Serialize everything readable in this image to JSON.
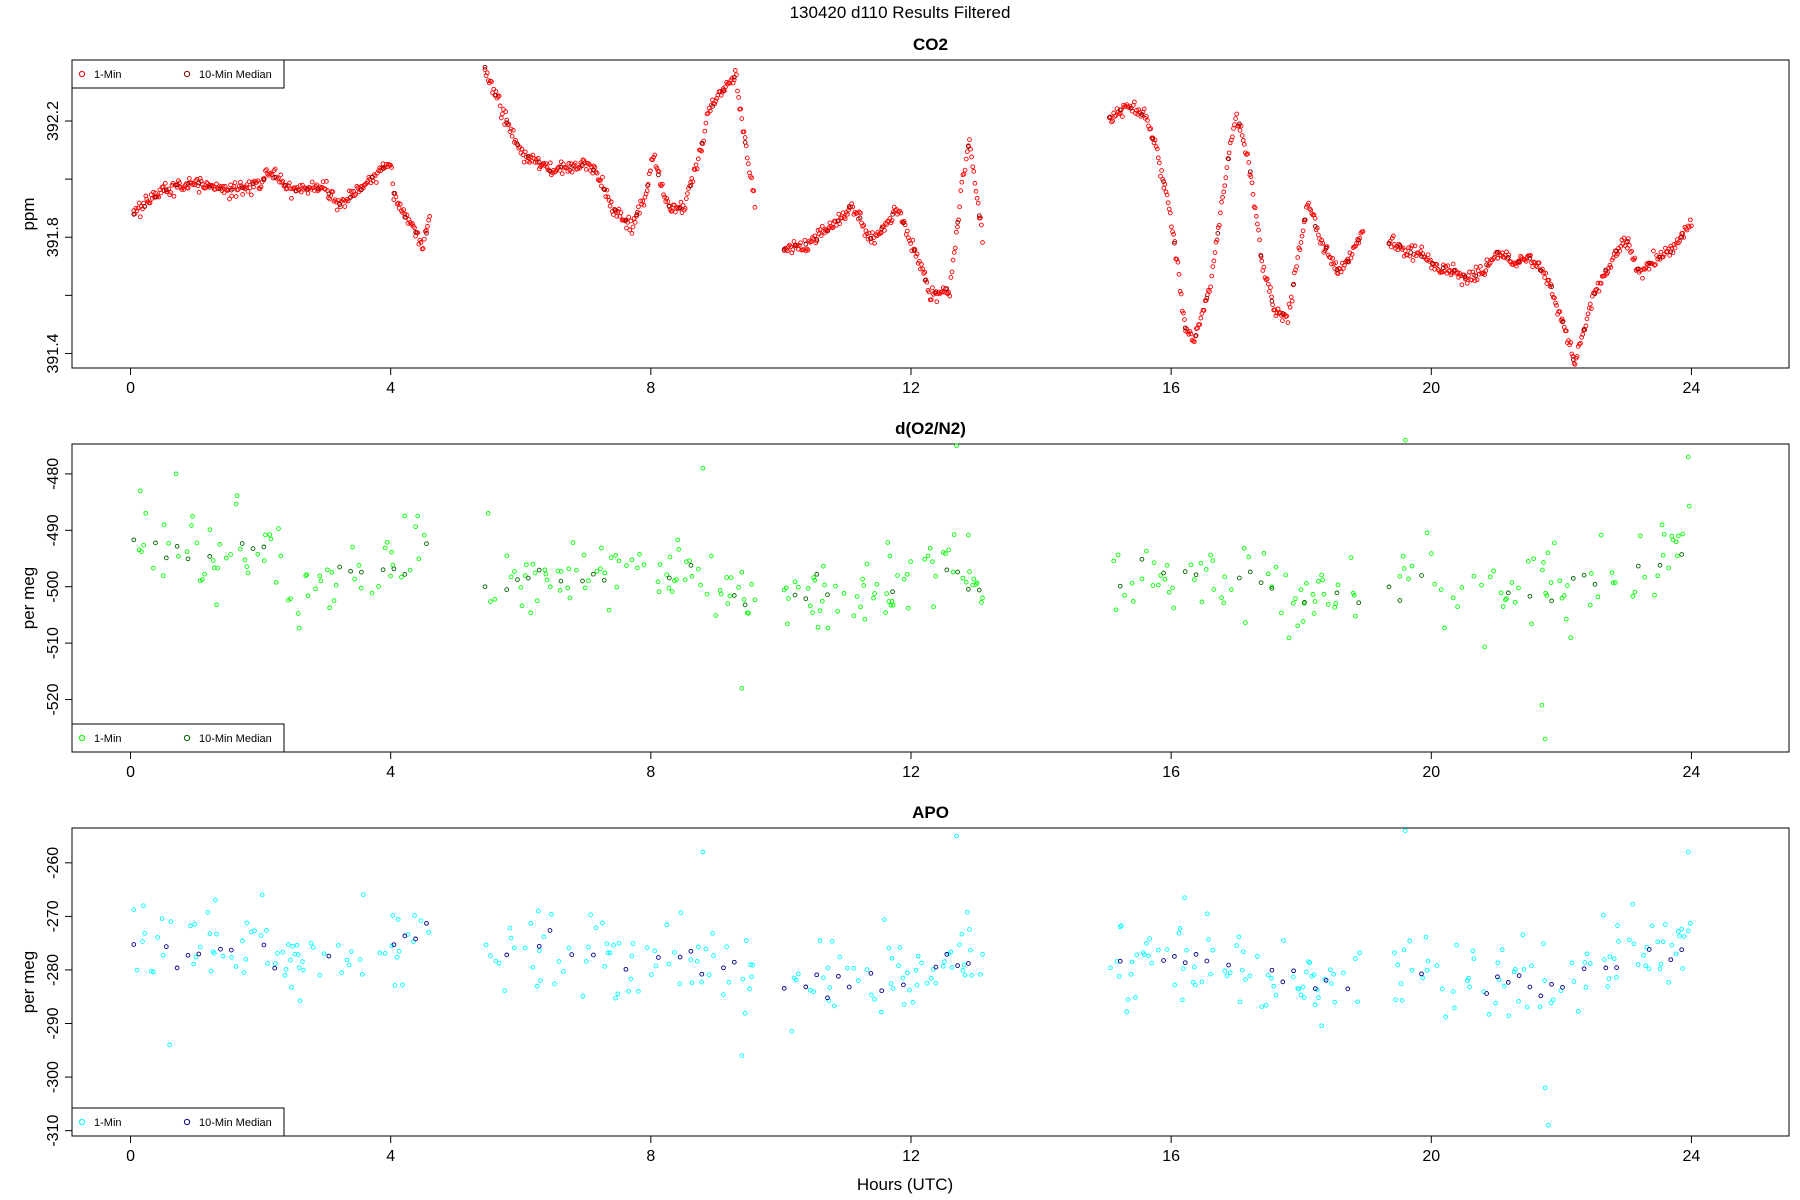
{
  "figure": {
    "suptitle": "130420   d110   Results Filtered",
    "xlabel": "Hours (UTC)"
  },
  "chart_data": [
    {
      "type": "scatter",
      "title": "CO2",
      "ylabel": "ppm",
      "xlim": [
        -0.9,
        25.5
      ],
      "ylim": [
        391.35,
        392.41
      ],
      "xticks": [
        0,
        4,
        8,
        12,
        16,
        20,
        24
      ],
      "yticks": [
        391.4,
        391.6,
        391.8,
        392.0,
        392.2
      ],
      "ytick_labels": [
        "391.4",
        "",
        "391.8",
        "",
        "392.2"
      ],
      "legend_position": "top-left",
      "series": [
        {
          "name": "1-Min",
          "color": "#ff0000"
        },
        {
          "name": "10-Min Median",
          "color": "#8b0000"
        }
      ],
      "segments": [
        {
          "x0": 0.05,
          "x1": 4.6,
          "points": [
            [
              0.05,
              391.88
            ],
            [
              0.5,
              391.96
            ],
            [
              1.0,
              391.99
            ],
            [
              1.5,
              391.96
            ],
            [
              2.0,
              391.98
            ],
            [
              2.1,
              392.03
            ],
            [
              2.5,
              391.96
            ],
            [
              3.0,
              391.97
            ],
            [
              3.2,
              391.91
            ],
            [
              3.5,
              391.96
            ],
            [
              4.0,
              392.06
            ],
            [
              4.05,
              391.95
            ],
            [
              4.2,
              391.87
            ],
            [
              4.3,
              391.86
            ],
            [
              4.5,
              391.76
            ],
            [
              4.6,
              391.86
            ]
          ]
        },
        {
          "x0": 5.45,
          "x1": 9.6,
          "points": [
            [
              5.45,
              392.38
            ],
            [
              5.7,
              392.24
            ],
            [
              6.0,
              392.09
            ],
            [
              6.5,
              392.03
            ],
            [
              7.0,
              392.05
            ],
            [
              7.2,
              392.01
            ],
            [
              7.4,
              391.9
            ],
            [
              7.7,
              391.84
            ],
            [
              7.9,
              391.93
            ],
            [
              8.05,
              392.1
            ],
            [
              8.1,
              392.02
            ],
            [
              8.3,
              391.9
            ],
            [
              8.5,
              391.9
            ],
            [
              8.7,
              392.04
            ],
            [
              8.9,
              392.24
            ],
            [
              9.1,
              392.3
            ],
            [
              9.3,
              392.36
            ],
            [
              9.5,
              392.05
            ],
            [
              9.6,
              391.92
            ]
          ]
        },
        {
          "x0": 10.05,
          "x1": 13.1,
          "points": [
            [
              10.05,
              391.76
            ],
            [
              10.4,
              391.77
            ],
            [
              10.8,
              391.84
            ],
            [
              11.1,
              391.91
            ],
            [
              11.4,
              391.79
            ],
            [
              11.8,
              391.9
            ],
            [
              12.1,
              391.73
            ],
            [
              12.3,
              391.6
            ],
            [
              12.6,
              391.62
            ],
            [
              12.8,
              392.0
            ],
            [
              12.9,
              392.13
            ],
            [
              13.1,
              391.8
            ]
          ]
        },
        {
          "x0": 15.05,
          "x1": 18.95,
          "points": [
            [
              15.05,
              392.21
            ],
            [
              15.3,
              392.25
            ],
            [
              15.6,
              392.22
            ],
            [
              15.8,
              392.08
            ],
            [
              16.0,
              391.87
            ],
            [
              16.1,
              391.7
            ],
            [
              16.2,
              391.5
            ],
            [
              16.35,
              391.44
            ],
            [
              16.6,
              391.63
            ],
            [
              16.8,
              391.95
            ],
            [
              17.0,
              392.23
            ],
            [
              17.2,
              392.05
            ],
            [
              17.4,
              391.7
            ],
            [
              17.6,
              391.55
            ],
            [
              17.8,
              391.53
            ],
            [
              18.1,
              391.92
            ],
            [
              18.3,
              391.79
            ],
            [
              18.6,
              391.67
            ],
            [
              18.95,
              391.82
            ]
          ]
        },
        {
          "x0": 19.35,
          "x1": 24.0,
          "points": [
            [
              19.35,
              391.78
            ],
            [
              19.9,
              391.73
            ],
            [
              20.2,
              391.69
            ],
            [
              20.5,
              391.66
            ],
            [
              20.8,
              391.68
            ],
            [
              21.0,
              391.75
            ],
            [
              21.3,
              391.71
            ],
            [
              21.5,
              391.73
            ],
            [
              21.8,
              391.66
            ],
            [
              22.0,
              391.52
            ],
            [
              22.2,
              391.37
            ],
            [
              22.5,
              391.6
            ],
            [
              22.8,
              391.74
            ],
            [
              23.0,
              391.79
            ],
            [
              23.2,
              391.68
            ],
            [
              23.4,
              391.72
            ],
            [
              23.7,
              391.75
            ],
            [
              24.0,
              391.85
            ]
          ]
        }
      ]
    },
    {
      "type": "scatter",
      "title": "d(O2/N2)",
      "ylabel": "per meg",
      "xlim": [
        -0.9,
        25.5
      ],
      "ylim": [
        -529.3,
        -474.7
      ],
      "xticks": [
        0,
        4,
        8,
        12,
        16,
        20,
        24
      ],
      "yticks": [
        -520,
        -510,
        -500,
        -490,
        -480
      ],
      "legend_position": "bottom-left",
      "series": [
        {
          "name": "1-Min",
          "color": "#00ff00"
        },
        {
          "name": "10-Min Median",
          "color": "#006400"
        }
      ],
      "segments": [
        {
          "x0": 0.05,
          "x1": 4.6,
          "points": [
            [
              0.05,
              -491
            ],
            [
              1.0,
              -496
            ],
            [
              2.0,
              -493
            ],
            [
              2.5,
              -500
            ],
            [
              3.0,
              -499
            ],
            [
              4.0,
              -495
            ],
            [
              4.6,
              -494
            ]
          ]
        },
        {
          "x0": 5.45,
          "x1": 9.6,
          "points": [
            [
              5.45,
              -500
            ],
            [
              6.5,
              -497
            ],
            [
              7.5,
              -499
            ],
            [
              8.5,
              -498
            ],
            [
              9.0,
              -500
            ],
            [
              9.6,
              -503
            ]
          ]
        },
        {
          "x0": 10.05,
          "x1": 13.1,
          "points": [
            [
              10.05,
              -501
            ],
            [
              11.0,
              -501
            ],
            [
              12.0,
              -500
            ],
            [
              12.6,
              -497
            ],
            [
              13.1,
              -499
            ]
          ]
        },
        {
          "x0": 15.05,
          "x1": 18.95,
          "points": [
            [
              15.05,
              -498
            ],
            [
              16.0,
              -497
            ],
            [
              16.8,
              -498
            ],
            [
              17.5,
              -500
            ],
            [
              18.5,
              -502
            ],
            [
              18.95,
              -503
            ]
          ]
        },
        {
          "x0": 19.35,
          "x1": 24.0,
          "points": [
            [
              19.35,
              -499
            ],
            [
              20.5,
              -501
            ],
            [
              21.5,
              -500
            ],
            [
              22.5,
              -499
            ],
            [
              23.5,
              -495
            ],
            [
              24.0,
              -494
            ]
          ]
        }
      ],
      "outliers": [
        [
          0.7,
          -480
        ],
        [
          5.5,
          -487
        ],
        [
          8.8,
          -479
        ],
        [
          9.4,
          -518
        ],
        [
          12.7,
          -475
        ],
        [
          19.6,
          -474
        ],
        [
          21.7,
          -521
        ],
        [
          21.75,
          -527
        ],
        [
          23.95,
          -477
        ]
      ]
    },
    {
      "type": "scatter",
      "title": "APO",
      "ylabel": "per meg",
      "xlim": [
        -0.9,
        25.5
      ],
      "ylim": [
        -311.0,
        -253.5
      ],
      "xticks": [
        0,
        4,
        8,
        12,
        16,
        20,
        24
      ],
      "yticks": [
        -310,
        -300,
        -290,
        -280,
        -270,
        -260
      ],
      "legend_position": "bottom-left",
      "series": [
        {
          "name": "1-Min",
          "color": "#00ffff"
        },
        {
          "name": "10-Min Median",
          "color": "#00008b"
        }
      ],
      "segments": [
        {
          "x0": 0.05,
          "x1": 4.6,
          "points": [
            [
              0.05,
              -274
            ],
            [
              1.0,
              -277
            ],
            [
              2.0,
              -274
            ],
            [
              2.5,
              -280
            ],
            [
              3.0,
              -279
            ],
            [
              4.0,
              -275
            ],
            [
              4.6,
              -274
            ]
          ]
        },
        {
          "x0": 5.45,
          "x1": 9.6,
          "points": [
            [
              5.45,
              -278
            ],
            [
              6.5,
              -276
            ],
            [
              7.5,
              -279
            ],
            [
              8.5,
              -278
            ],
            [
              9.0,
              -278
            ],
            [
              9.6,
              -281
            ]
          ]
        },
        {
          "x0": 10.05,
          "x1": 13.1,
          "points": [
            [
              10.05,
              -282
            ],
            [
              11.0,
              -282
            ],
            [
              12.0,
              -281
            ],
            [
              12.6,
              -277
            ],
            [
              13.1,
              -279
            ]
          ]
        },
        {
          "x0": 15.05,
          "x1": 18.95,
          "points": [
            [
              15.05,
              -278
            ],
            [
              16.0,
              -278
            ],
            [
              16.8,
              -278
            ],
            [
              17.5,
              -281
            ],
            [
              18.5,
              -283
            ],
            [
              18.95,
              -283
            ]
          ]
        },
        {
          "x0": 19.35,
          "x1": 24.0,
          "points": [
            [
              19.35,
              -280
            ],
            [
              20.5,
              -282
            ],
            [
              21.5,
              -282
            ],
            [
              22.5,
              -281
            ],
            [
              23.5,
              -276
            ],
            [
              24.0,
              -275
            ]
          ]
        }
      ],
      "outliers": [
        [
          0.2,
          -268
        ],
        [
          0.6,
          -294
        ],
        [
          8.8,
          -258
        ],
        [
          9.4,
          -296
        ],
        [
          12.7,
          -255
        ],
        [
          19.6,
          -254
        ],
        [
          21.75,
          -302
        ],
        [
          21.8,
          -309
        ],
        [
          23.95,
          -258
        ]
      ]
    }
  ]
}
